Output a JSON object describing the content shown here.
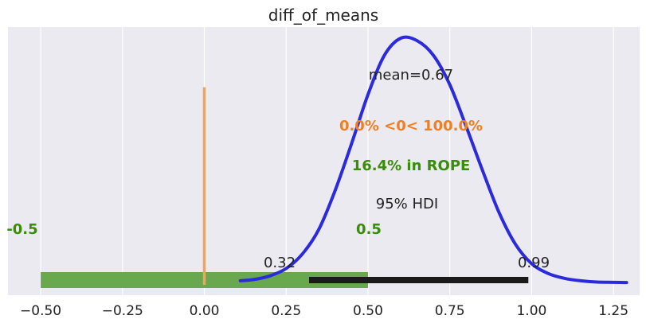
{
  "chart_data": {
    "type": "posterior",
    "title": "diff_of_means",
    "xlim": [
      -0.6,
      1.33
    ],
    "ylim": [
      0,
      1
    ],
    "xticks": [
      -0.5,
      -0.25,
      0.0,
      0.25,
      0.5,
      0.75,
      1.0,
      1.25
    ],
    "xtick_labels": [
      "−0.50",
      "−0.25",
      "0.00",
      "0.25",
      "0.50",
      "0.75",
      "1.00",
      "1.25"
    ],
    "grid": true,
    "density_curve": {
      "x": [
        0.11,
        0.15,
        0.2,
        0.25,
        0.3,
        0.35,
        0.4,
        0.45,
        0.5,
        0.55,
        0.6,
        0.65,
        0.7,
        0.75,
        0.8,
        0.85,
        0.9,
        0.95,
        1.0,
        1.05,
        1.1,
        1.15,
        1.2,
        1.29
      ],
      "y": [
        0.01,
        0.015,
        0.03,
        0.06,
        0.12,
        0.22,
        0.38,
        0.57,
        0.77,
        0.93,
        1.0,
        0.99,
        0.93,
        0.81,
        0.64,
        0.46,
        0.29,
        0.16,
        0.08,
        0.04,
        0.02,
        0.01,
        0.005,
        0.003
      ],
      "color": "#2b2bdc"
    },
    "reference_line": {
      "value": 0.0,
      "y_top": 0.8,
      "color": "#f5a25a",
      "label": "0.0% <0< 100.0%",
      "label_color": "#f07f22"
    },
    "rope": {
      "low": -0.5,
      "high": 0.5,
      "low_label": "-0.5",
      "high_label": "0.5",
      "label": "16.4% in ROPE",
      "color": "#6aa84f",
      "label_color": "#3a8c0a"
    },
    "hdi": {
      "low": 0.32,
      "high": 0.99,
      "low_label": "0.32",
      "high_label": "0.99",
      "label": "95% HDI",
      "color": "#1a1a1a"
    },
    "mean": {
      "value": 0.67,
      "label": "mean=0.67"
    }
  }
}
